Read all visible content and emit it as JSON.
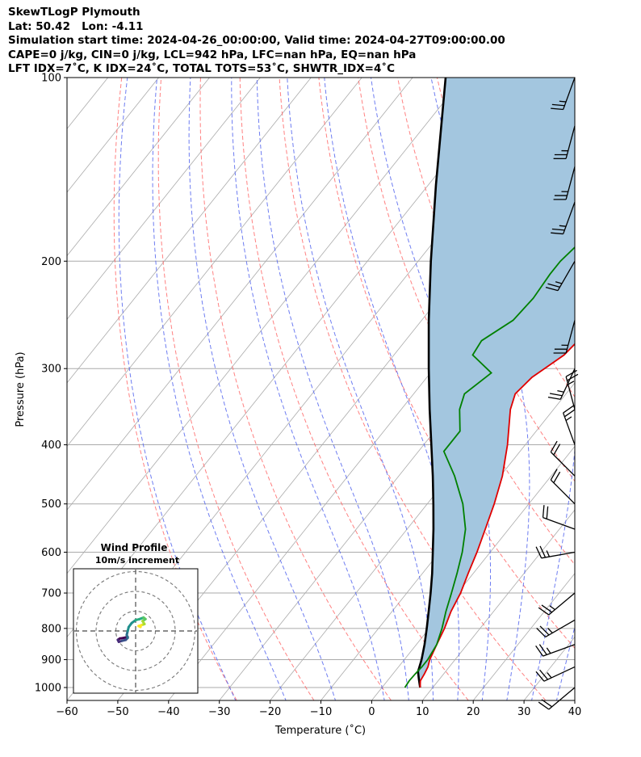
{
  "header": {
    "line1": "SkewTLogP Plymouth",
    "line2": "Lat: 50.42   Lon: -4.11",
    "line3": "Simulation start time: 2024-04-26_00:00:00, Valid time: 2024-04-27T09:00:00.00",
    "line4": "CAPE=0 j/kg, CIN=0 j/kg, LCL=942 hPa, LFC=nan hPa, EQ=nan hPa",
    "line5": "LFT IDX=7˚C, K IDX=24˚C, TOTAL TOTS=53˚C, SHWTR_IDX=4˚C"
  },
  "chart_data": {
    "type": "line",
    "subtype": "skew-t log-p",
    "xlabel": "Temperature (˚C)",
    "ylabel": "Pressure (hPa)",
    "xlim": [
      -60,
      40
    ],
    "ylim": [
      1050,
      100
    ],
    "yscale": "log",
    "x_ticks": [
      "−60",
      "−50",
      "−40",
      "−30",
      "−20",
      "−10",
      "0",
      "10",
      "20",
      "30",
      "40"
    ],
    "y_ticks": [
      "100",
      "200",
      "300",
      "400",
      "500",
      "600",
      "700",
      "800",
      "900",
      "1000"
    ],
    "grid": true,
    "colors": {
      "temperature": "#e00000",
      "dewpoint": "#008000",
      "parcel": "#000000",
      "shade": "#a3c6df",
      "dry_adiabat": "#ff6b6b",
      "moist_adiabat": "#5566ee",
      "mixing_ratio": "#888888",
      "isotherm_grid": "#aaaaaa"
    },
    "series": [
      {
        "id": "temperature",
        "points": [
          [
            1000,
            7.5
          ],
          [
            975,
            6.5
          ],
          [
            950,
            6.2
          ],
          [
            925,
            5.8
          ],
          [
            900,
            5.0
          ],
          [
            850,
            4.0
          ],
          [
            800,
            3.0
          ],
          [
            750,
            1.6
          ],
          [
            700,
            0.6
          ],
          [
            650,
            -1.0
          ],
          [
            600,
            -2.6
          ],
          [
            550,
            -4.6
          ],
          [
            500,
            -6.8
          ],
          [
            450,
            -9.6
          ],
          [
            400,
            -13.5
          ],
          [
            350,
            -18.5
          ],
          [
            330,
            -20.0
          ],
          [
            310,
            -19.3
          ],
          [
            300,
            -18.2
          ],
          [
            285,
            -16.5
          ],
          [
            270,
            -16.0
          ],
          [
            250,
            -15.5
          ],
          [
            225,
            -14.5
          ],
          [
            200,
            -15.0
          ],
          [
            175,
            -15.8
          ],
          [
            160,
            -15.4
          ],
          [
            150,
            -17.5
          ],
          [
            140,
            -18.2
          ],
          [
            130,
            -21.5
          ],
          [
            120,
            -24.0
          ],
          [
            110,
            -27.5
          ],
          [
            100,
            -30.8
          ]
        ]
      },
      {
        "id": "dewpoint",
        "points": [
          [
            1000,
            4.5
          ],
          [
            975,
            4.3
          ],
          [
            950,
            4.4
          ],
          [
            925,
            4.6
          ],
          [
            900,
            4.6
          ],
          [
            850,
            4.0
          ],
          [
            800,
            2.5
          ],
          [
            750,
            0.6
          ],
          [
            700,
            -1.2
          ],
          [
            650,
            -3.2
          ],
          [
            600,
            -5.5
          ],
          [
            550,
            -8.5
          ],
          [
            500,
            -13.0
          ],
          [
            450,
            -19.0
          ],
          [
            410,
            -25.0
          ],
          [
            380,
            -25.0
          ],
          [
            350,
            -28.5
          ],
          [
            330,
            -30.0
          ],
          [
            305,
            -28.0
          ],
          [
            285,
            -34.5
          ],
          [
            270,
            -35.0
          ],
          [
            250,
            -32.0
          ],
          [
            230,
            -31.5
          ],
          [
            210,
            -32.0
          ],
          [
            200,
            -32.0
          ],
          [
            185,
            -31.0
          ],
          [
            170,
            -31.0
          ],
          [
            160,
            -32.5
          ],
          [
            150,
            -30.0
          ],
          [
            140,
            -28.0
          ],
          [
            120,
            -26.5
          ],
          [
            100,
            -23.0
          ]
        ]
      },
      {
        "id": "parcel",
        "points": [
          [
            1000,
            7.5
          ],
          [
            970,
            6.0
          ],
          [
            942,
            4.6
          ],
          [
            900,
            3.4
          ],
          [
            850,
            1.6
          ],
          [
            800,
            -0.5
          ],
          [
            750,
            -2.8
          ],
          [
            700,
            -5.3
          ],
          [
            650,
            -8.1
          ],
          [
            600,
            -11.3
          ],
          [
            550,
            -14.8
          ],
          [
            500,
            -18.8
          ],
          [
            450,
            -23.3
          ],
          [
            400,
            -28.5
          ],
          [
            350,
            -34.4
          ],
          [
            300,
            -41.0
          ],
          [
            250,
            -48.6
          ],
          [
            200,
            -57.5
          ],
          [
            150,
            -68.5
          ],
          [
            100,
            -83.5
          ]
        ]
      }
    ],
    "hodograph": {
      "title": "Wind Profile",
      "subtitle": "10m/s increment",
      "rings_ms": [
        10,
        20,
        30
      ],
      "uv": [
        [
          -4,
          -3
        ],
        [
          -6,
          -3.5
        ],
        [
          -8,
          -3.8
        ],
        [
          -9,
          -4.5
        ],
        [
          -8.5,
          -5.5
        ],
        [
          -7,
          -5
        ],
        [
          -5,
          -4.5
        ],
        [
          -4,
          -3.5
        ],
        [
          -4.5,
          -2
        ],
        [
          -4,
          0
        ],
        [
          -3.5,
          2
        ],
        [
          -2,
          4
        ],
        [
          0,
          5.5
        ],
        [
          2,
          6
        ],
        [
          4,
          6.8
        ],
        [
          5,
          6
        ],
        [
          3.5,
          5
        ],
        [
          4.5,
          3.5
        ],
        [
          3,
          3
        ],
        [
          1.5,
          2.5
        ],
        [
          2.5,
          2
        ]
      ]
    },
    "wind_barbs": [
      {
        "pressure": 100,
        "speed_kt": 25,
        "dir_deg": 200
      },
      {
        "pressure": 120,
        "speed_kt": 25,
        "dir_deg": 195
      },
      {
        "pressure": 140,
        "speed_kt": 25,
        "dir_deg": 195
      },
      {
        "pressure": 160,
        "speed_kt": 25,
        "dir_deg": 200
      },
      {
        "pressure": 200,
        "speed_kt": 25,
        "dir_deg": 210
      },
      {
        "pressure": 250,
        "speed_kt": 25,
        "dir_deg": 195
      },
      {
        "pressure": 300,
        "speed_kt": 25,
        "dir_deg": 205
      },
      {
        "pressure": 350,
        "speed_kt": 25,
        "dir_deg": 345
      },
      {
        "pressure": 400,
        "speed_kt": 25,
        "dir_deg": 340
      },
      {
        "pressure": 450,
        "speed_kt": 20,
        "dir_deg": 315
      },
      {
        "pressure": 500,
        "speed_kt": 20,
        "dir_deg": 315
      },
      {
        "pressure": 550,
        "speed_kt": 20,
        "dir_deg": 290
      },
      {
        "pressure": 600,
        "speed_kt": 25,
        "dir_deg": 260
      },
      {
        "pressure": 700,
        "speed_kt": 25,
        "dir_deg": 230
      },
      {
        "pressure": 775,
        "speed_kt": 25,
        "dir_deg": 240
      },
      {
        "pressure": 850,
        "speed_kt": 25,
        "dir_deg": 250
      },
      {
        "pressure": 925,
        "speed_kt": 25,
        "dir_deg": 245
      },
      {
        "pressure": 1000,
        "speed_kt": 20,
        "dir_deg": 230
      }
    ]
  }
}
